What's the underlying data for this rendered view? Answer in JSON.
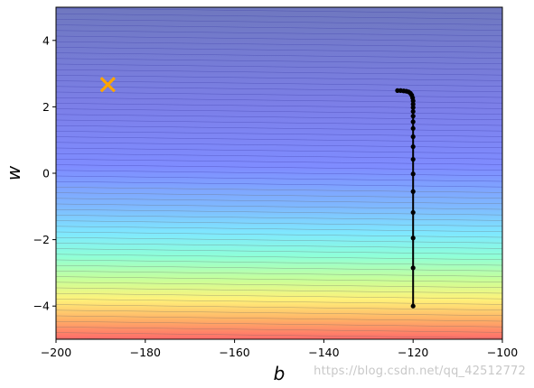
{
  "chart_data": {
    "type": "contour",
    "xlabel": "b",
    "ylabel": "w",
    "xlim": [
      -200,
      -100
    ],
    "ylim": [
      -5,
      5
    ],
    "xticks": [
      -200,
      -180,
      -160,
      -140,
      -120,
      -100
    ],
    "yticks": [
      -4,
      -2,
      0,
      2,
      4
    ],
    "xtick_labels": [
      "−200",
      "−180",
      "−160",
      "−140",
      "−120",
      "−100"
    ],
    "ytick_labels": [
      "−4",
      "−2",
      "0",
      "2",
      "4"
    ],
    "colormap": "jet",
    "optimum_marker": {
      "b": -188.4,
      "w": 2.67,
      "marker": "x",
      "color": "#ffa500"
    },
    "descent_path": {
      "color": "#000000",
      "b": [
        -120,
        -120,
        -120,
        -120,
        -120,
        -120,
        -120,
        -120,
        -120,
        -120,
        -120,
        -120,
        -120,
        -120,
        -120,
        -120,
        -120.1,
        -120.3,
        -120.6,
        -121,
        -121.5,
        -122.1,
        -122.8,
        -123.5
      ],
      "w": [
        -4.0,
        -2.85,
        -1.95,
        -1.18,
        -0.55,
        -0.02,
        0.42,
        0.8,
        1.1,
        1.35,
        1.55,
        1.72,
        1.86,
        1.98,
        2.08,
        2.18,
        2.27,
        2.35,
        2.41,
        2.45,
        2.47,
        2.48,
        2.49,
        2.49
      ]
    }
  },
  "watermark": "https://blog.csdn.net/qq_42512772"
}
